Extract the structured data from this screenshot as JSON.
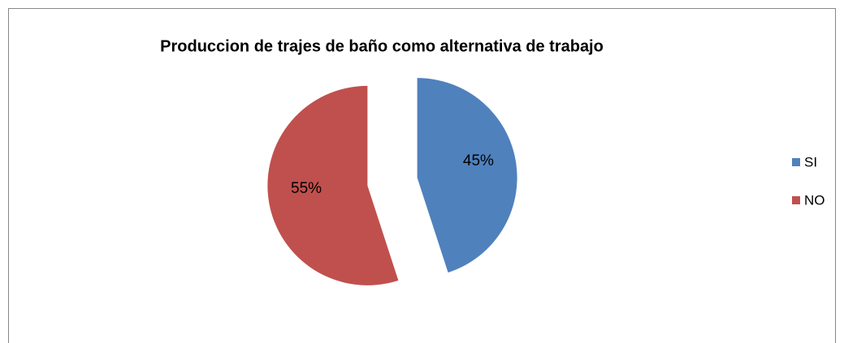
{
  "chart_data": {
    "type": "pie",
    "title": "Produccion de trajes de baño como alternativa de trabajo",
    "categories": [
      "SI",
      "NO"
    ],
    "values": [
      45,
      55
    ],
    "value_labels": [
      "45%",
      "55%"
    ],
    "colors": [
      "#4f81bd",
      "#c0504d"
    ],
    "legend": "right"
  }
}
